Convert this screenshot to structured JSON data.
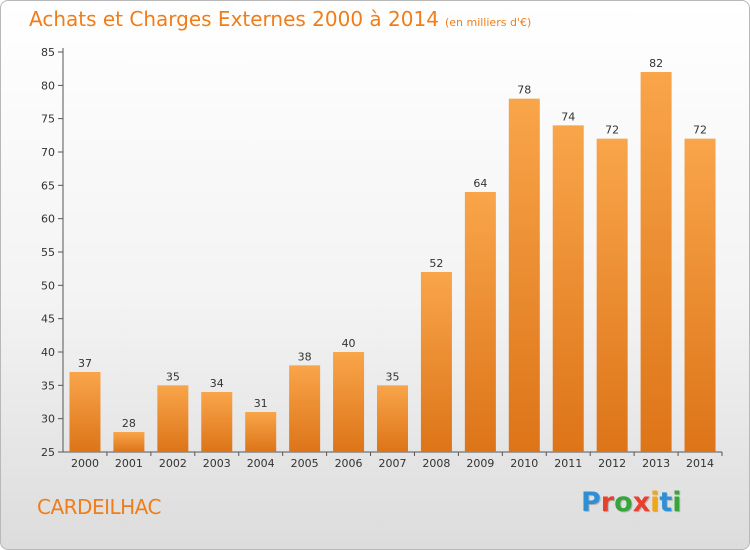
{
  "header": {
    "title": "Achats et Charges Externes 2000 à 2014",
    "unit": "(en milliers d'€)"
  },
  "footer": {
    "city": "CARDEILHAC",
    "logo_letters": [
      "P",
      "r",
      "o",
      "x",
      "i",
      "t",
      "i"
    ],
    "logo_colors": [
      "#2f8fd5",
      "#e8402f",
      "#36a53a",
      "#e8402f",
      "#f1a518",
      "#2f8fd5",
      "#36a53a"
    ]
  },
  "chart_data": {
    "type": "bar",
    "title": "Achats et Charges Externes 2000 à 2014",
    "xlabel": "",
    "ylabel": "",
    "categories": [
      "2000",
      "2001",
      "2002",
      "2003",
      "2004",
      "2005",
      "2006",
      "2007",
      "2008",
      "2009",
      "2010",
      "2011",
      "2012",
      "2013",
      "2014"
    ],
    "values": [
      37,
      28,
      35,
      34,
      31,
      38,
      40,
      35,
      52,
      64,
      78,
      74,
      72,
      82,
      72
    ],
    "ylim": [
      25,
      85
    ],
    "yticks": [
      "25",
      "30",
      "35",
      "40",
      "45",
      "50",
      "55",
      "60",
      "65",
      "70",
      "75",
      "80",
      "85"
    ],
    "grid": false,
    "bar_color": "#f7a03f"
  }
}
